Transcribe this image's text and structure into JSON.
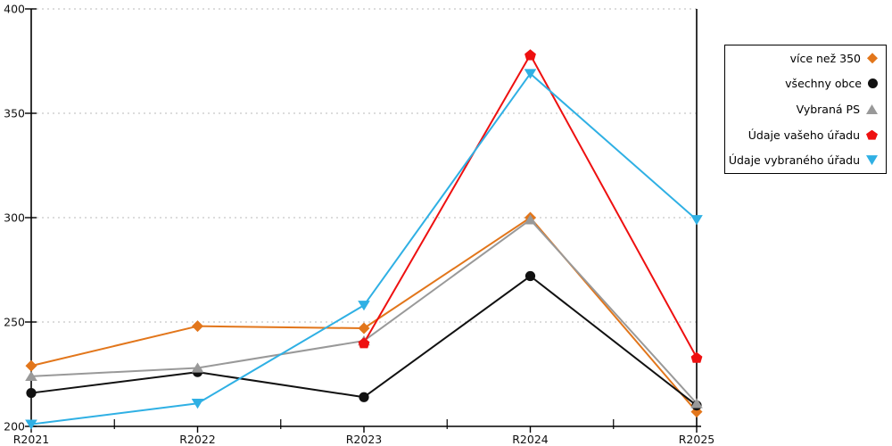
{
  "chart_data": {
    "type": "line",
    "categories": [
      "R2021",
      "R2022",
      "R2023",
      "R2024",
      "R2025"
    ],
    "series": [
      {
        "name": "více než 350",
        "marker": "diamond",
        "color": "#E2761B",
        "values": [
          229,
          248,
          247,
          300,
          207
        ]
      },
      {
        "name": "všechny obce",
        "marker": "circle",
        "color": "#111111",
        "values": [
          216,
          226,
          214,
          272,
          210
        ]
      },
      {
        "name": "Vybraná PS",
        "marker": "triangle-up",
        "color": "#999999",
        "values": [
          224,
          228,
          241,
          299,
          211
        ]
      },
      {
        "name": "Údaje vašeho úřadu",
        "marker": "pentagon",
        "color": "#EE1010",
        "values": [
          null,
          null,
          240,
          378,
          233
        ]
      },
      {
        "name": "Údaje vybraného úřadu",
        "marker": "triangle-down",
        "color": "#2FB0E4",
        "values": [
          201,
          211,
          258,
          369,
          299
        ]
      }
    ],
    "title": "",
    "xlabel": "",
    "ylabel": "",
    "ylim": [
      200,
      400
    ],
    "yticks": [
      200,
      250,
      300,
      350,
      400
    ],
    "grid": "horizontal-dashed",
    "minor_x_ticks": true,
    "legend_position": "right"
  },
  "colors": {
    "background": "#FFFFFF",
    "axis": "#000000",
    "gridline": "#C8C8C8",
    "legend_border": "#000000"
  }
}
